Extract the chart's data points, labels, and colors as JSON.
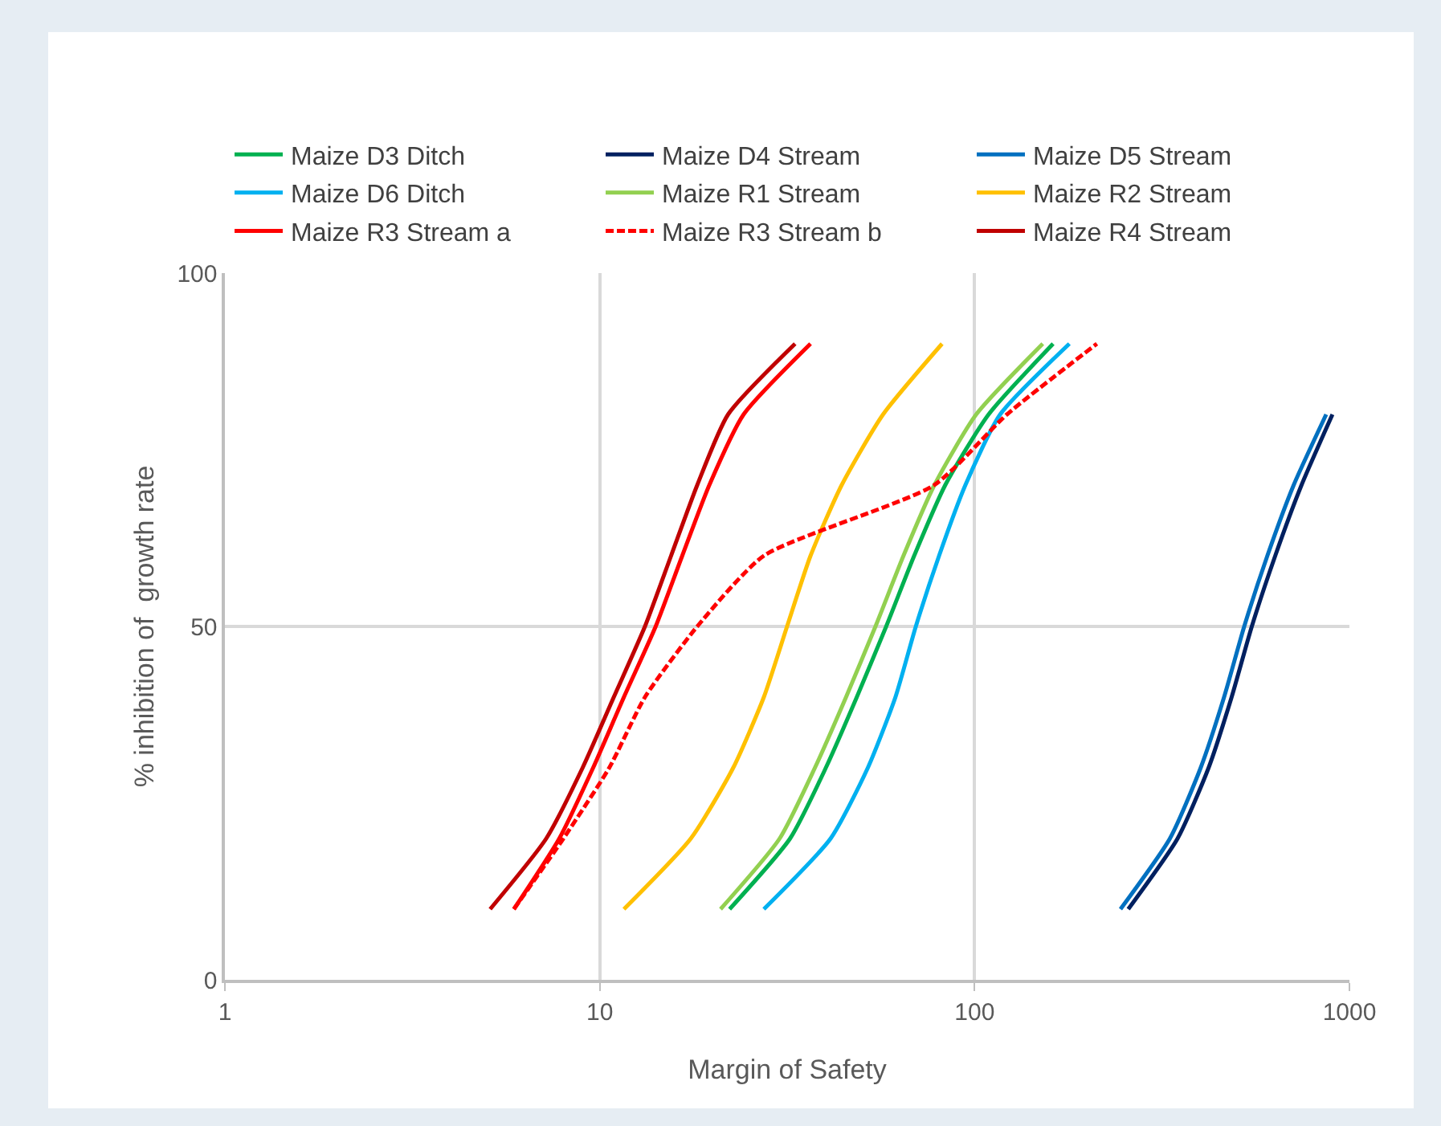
{
  "chart_data": {
    "type": "line",
    "xlabel": "Margin of Safety",
    "ylabel": "% inhibition of  growth rate",
    "log": "x",
    "grid": true,
    "legend": "top",
    "marker": "none",
    "xlim": [
      1,
      1000
    ],
    "xticks": [
      1,
      10,
      100,
      1000
    ],
    "ylim": [
      0,
      100
    ],
    "yticks": [
      0,
      50,
      100
    ],
    "series": [
      {
        "name": "Maize D3 Ditch",
        "color": "#00b050",
        "line_style": "solid",
        "x": [
          22.2,
          32.2,
          40.1,
          48.5,
          58.1,
          69.0,
          83.5,
          109,
          162
        ],
        "values": [
          10,
          20,
          30,
          40,
          50,
          60,
          70,
          80,
          90
        ]
      },
      {
        "name": "Maize D4 Stream",
        "color": "#002060",
        "line_style": "solid",
        "x": [
          257,
          348,
          421,
          485,
          549,
          634,
          745,
          901
        ],
        "values": [
          10,
          20,
          30,
          40,
          50,
          60,
          70,
          80
        ]
      },
      {
        "name": "Maize D5 Stream",
        "color": "#0070c0",
        "line_style": "solid",
        "x": [
          245,
          332,
          401,
          463,
          524,
          604,
          710,
          867
        ],
        "values": [
          10,
          20,
          30,
          40,
          50,
          60,
          70,
          80
        ]
      },
      {
        "name": "Maize D6 Ditch",
        "color": "#00b0f0",
        "line_style": "solid",
        "x": [
          27.4,
          41.3,
          51.9,
          61.5,
          69.7,
          80.4,
          94.5,
          117,
          179
        ],
        "values": [
          10,
          20,
          30,
          40,
          50,
          60,
          70,
          80,
          90
        ]
      },
      {
        "name": "Maize R1 Stream",
        "color": "#92d050",
        "line_style": "solid",
        "x": [
          21.0,
          30.2,
          37.5,
          45.4,
          54.4,
          64.6,
          78.1,
          101,
          152
        ],
        "values": [
          10,
          20,
          30,
          40,
          50,
          60,
          70,
          80,
          90
        ]
      },
      {
        "name": "Maize R2 Stream",
        "color": "#ffc000",
        "line_style": "solid",
        "x": [
          11.6,
          17.5,
          22.7,
          27.4,
          31.6,
          36.5,
          44.2,
          57.0,
          81.9
        ],
        "values": [
          10,
          20,
          30,
          40,
          50,
          60,
          70,
          80,
          90
        ]
      },
      {
        "name": "Maize R3 Stream a",
        "color": "#ff0000",
        "line_style": "solid",
        "x": [
          5.9,
          7.8,
          9.6,
          11.6,
          14.1,
          16.6,
          19.6,
          24.2,
          36.5
        ],
        "values": [
          10,
          20,
          30,
          40,
          50,
          60,
          70,
          80,
          90
        ]
      },
      {
        "name": "Maize R3 Stream b",
        "color": "#ff0000",
        "line_style": "dashed",
        "x": [
          5.9,
          8.0,
          10.6,
          13.2,
          18.2,
          27.4,
          78,
          122,
          212
        ],
        "values": [
          10,
          20,
          30,
          40,
          50,
          60,
          70,
          80,
          90
        ]
      },
      {
        "name": "Maize R4 Stream",
        "color": "#c00000",
        "line_style": "solid",
        "x": [
          5.1,
          7.2,
          9.0,
          10.9,
          13.2,
          15.5,
          18.2,
          22.0,
          33.2
        ],
        "values": [
          10,
          20,
          30,
          40,
          50,
          60,
          70,
          80,
          90
        ]
      }
    ]
  }
}
